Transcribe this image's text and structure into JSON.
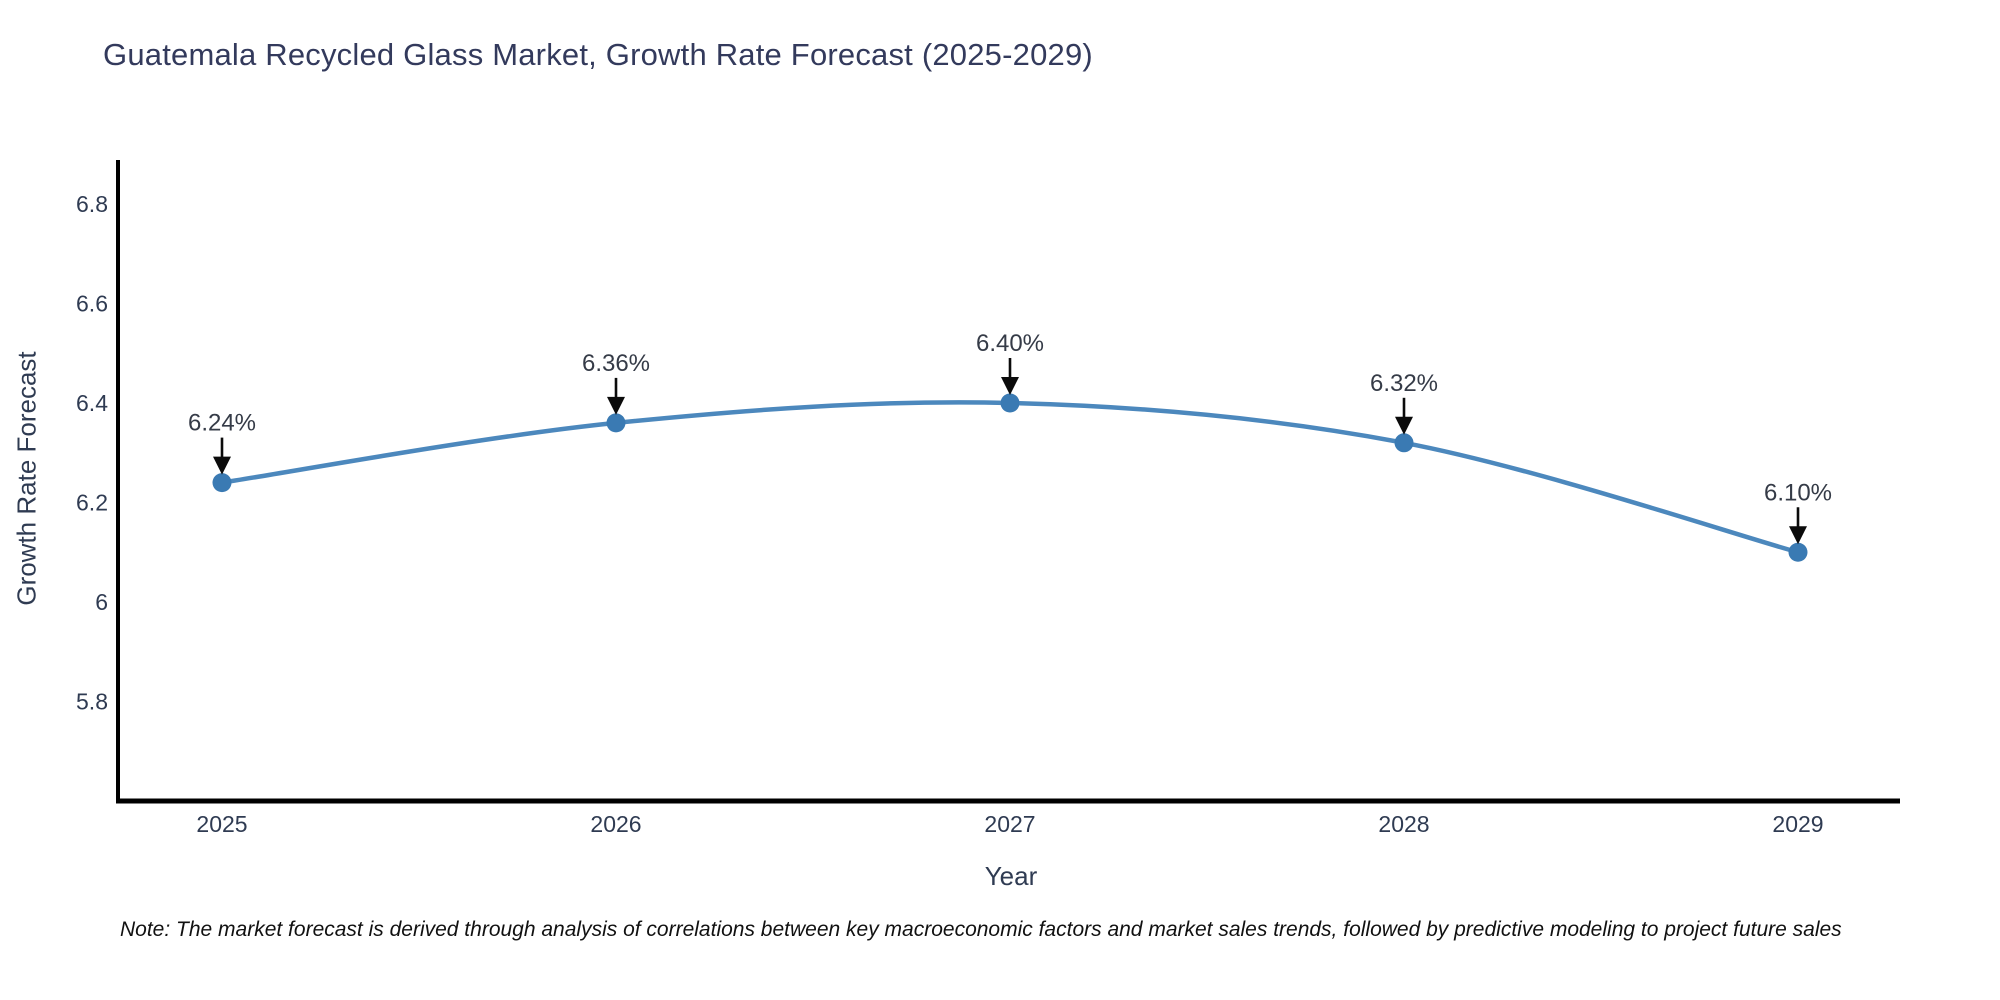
{
  "chart_data": {
    "type": "line",
    "title": "Guatemala Recycled Glass Market, Growth Rate Forecast (2025-2029)",
    "xlabel": "Year",
    "ylabel": "Growth Rate Forecast",
    "x": [
      2025,
      2026,
      2027,
      2028,
      2029
    ],
    "values": [
      6.24,
      6.36,
      6.4,
      6.32,
      6.1
    ],
    "point_labels": [
      "6.24%",
      "6.36%",
      "6.40%",
      "6.32%",
      "6.10%"
    ],
    "yticks": [
      {
        "value": 6.8,
        "label": "6.8"
      },
      {
        "value": 6.6,
        "label": "6.6"
      },
      {
        "value": 6.4,
        "label": "6.4"
      },
      {
        "value": 6.2,
        "label": "6.2"
      },
      {
        "value": 6.0,
        "label": "6"
      },
      {
        "value": 5.8,
        "label": "5.8"
      }
    ],
    "ylim": [
      5.6,
      6.89
    ],
    "grid": false,
    "legend": "none",
    "annotation_style": "black-down-arrow",
    "colors": {
      "line": "#4c88bd",
      "marker": "#3a7ab3",
      "axis": "#000000",
      "tick_text": "#2f3b52",
      "annotation_text": "#353b47",
      "arrow": "#0b0b0b",
      "title_text": "#333a5c"
    }
  },
  "note": {
    "text": "Note: The market forecast is derived through analysis of correlations between key macroeconomic factors and market sales trends, followed by predictive modeling to project future sales"
  }
}
